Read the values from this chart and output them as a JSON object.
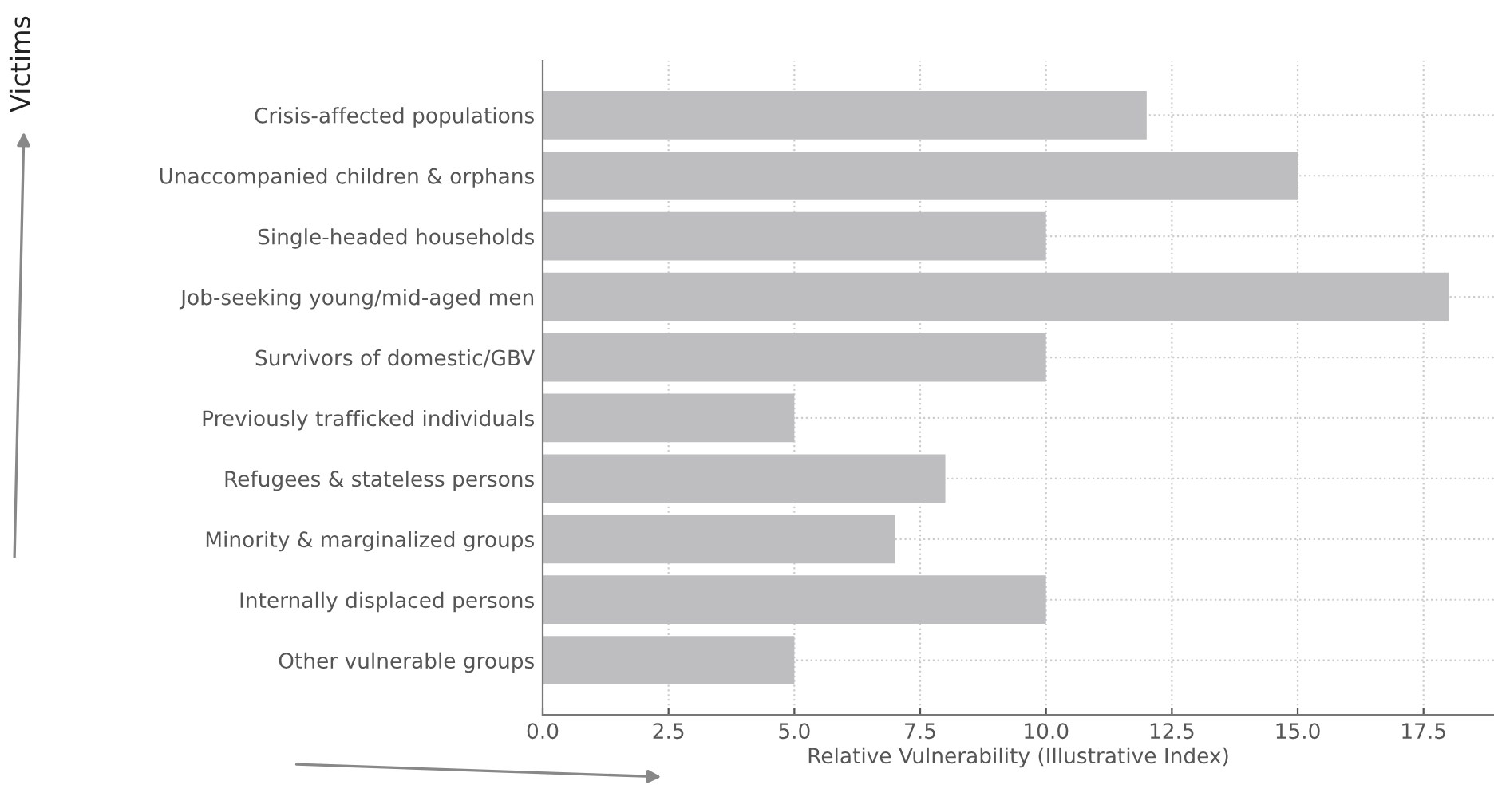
{
  "chart_data": {
    "type": "bar",
    "orientation": "horizontal",
    "categories": [
      "Crisis-affected populations",
      "Unaccompanied children & orphans",
      "Single-headed households",
      "Job-seeking young/mid-aged men",
      "Survivors of domestic/GBV",
      "Previously trafficked individuals",
      "Refugees & stateless persons",
      "Minority & marginalized groups",
      "Internally displaced persons",
      "Other vulnerable groups"
    ],
    "values": [
      12,
      15,
      10,
      18,
      10,
      5,
      8,
      7,
      10,
      5
    ],
    "color": "#bebec0",
    "xlabel": "Relative Vulnerability (Illustrative Index)",
    "ylabel": "Victims",
    "xlim": [
      0,
      18.9
    ],
    "xticks": [
      {
        "value": 0,
        "label": "0.0"
      },
      2.5,
      {
        "value": 5,
        "label": "5.0"
      },
      7.5,
      {
        "value": 10,
        "label": "10.0"
      },
      12.5,
      {
        "value": 15,
        "label": "15.0"
      },
      17.5
    ],
    "grid": true
  }
}
